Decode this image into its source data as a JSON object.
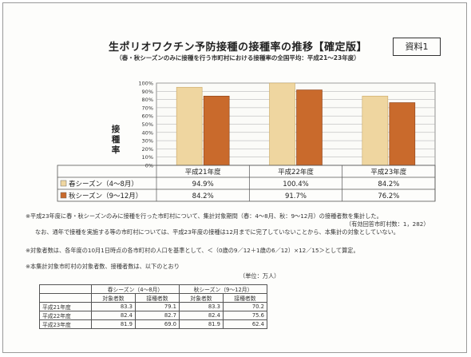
{
  "badge": "資料1",
  "title": "生ポリオワクチン予防接種の接種率の推移【確定版】",
  "subtitle": "（春・秋シーズンのみに接種を行う市町村における接種率の全国平均：平成21～23年度）",
  "chart_data": {
    "type": "bar",
    "title": "生ポリオワクチン予防接種の接種率の推移【確定版】",
    "ylabel": "接種率",
    "ylim": [
      0,
      100
    ],
    "yticks": [
      "0%",
      "10%",
      "20%",
      "30%",
      "40%",
      "50%",
      "60%",
      "70%",
      "80%",
      "90%",
      "100%"
    ],
    "categories": [
      "平成21年度",
      "平成22年度",
      "平成23年度"
    ],
    "series": [
      {
        "name": "春シーズン（4～8月）",
        "values": [
          94.9,
          100.4,
          84.2
        ],
        "labels": [
          "94.9%",
          "100.4%",
          "84.2%"
        ],
        "color": "#efd6a0"
      },
      {
        "name": "秋シーズン（9～12月）",
        "values": [
          84.2,
          91.7,
          76.2
        ],
        "labels": [
          "84.2%",
          "91.7%",
          "76.2%"
        ],
        "color": "#c96a2c"
      }
    ],
    "grid": true
  },
  "notes": [
    "※平成23年度に春・秋シーズンのみに接種を行った市町村について、集計対象期間（春：4～8月、秋：9～12月）の接種者数を集計した。",
    "（有効回答市町村数：1，282）",
    "なお、通年で接種を実施する等の市町村については、平成23年度の接種は12月までに完了していないことから、本集計の対象としていない。",
    "※対象者数は、各年度の10月1日時点の各市町村の人口を基準として、＜（0歳の9／12＋1歳の6／12）×12／15＞として算定。",
    "※本集計対象市町村の対象者数、接種者数は、以下のとおり"
  ],
  "subtable": {
    "unit": "（単位：万人）",
    "groups": [
      "春シーズン（4～8月）",
      "秋シーズン（9～12月）"
    ],
    "cols": [
      "対象者数",
      "接種者数",
      "対象者数",
      "接種者数"
    ],
    "rows": [
      {
        "label": "平成21年度",
        "cells": [
          "83.3",
          "79.1",
          "83.3",
          "70.2"
        ]
      },
      {
        "label": "平成22年度",
        "cells": [
          "82.4",
          "82.7",
          "82.4",
          "75.6"
        ]
      },
      {
        "label": "平成23年度",
        "cells": [
          "81.9",
          "69.0",
          "81.9",
          "62.4"
        ]
      }
    ]
  }
}
